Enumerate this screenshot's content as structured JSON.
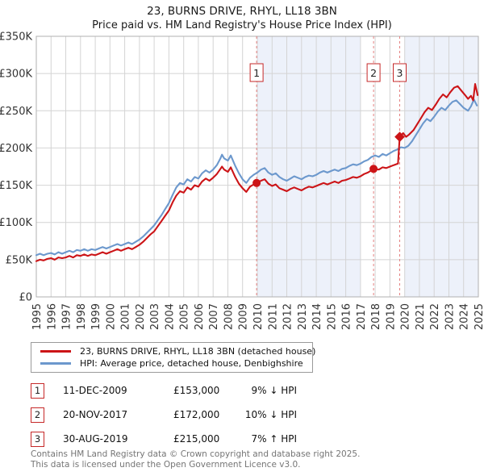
{
  "title": "23, BURNS DRIVE, RHYL, LL18 3BN",
  "subtitle": "Price paid vs. HM Land Registry's House Price Index (HPI)",
  "legend": {
    "items": [
      {
        "label": "23, BURNS DRIVE, RHYL, LL18 3BN (detached house)",
        "color": "#cc1417"
      },
      {
        "label": "HPI: Average price, detached house, Denbighshire",
        "color": "#6c98cd"
      }
    ]
  },
  "transactions": [
    {
      "num": "1",
      "date": "11-DEC-2009",
      "price": "£153,000",
      "hpi_diff": "9% ↓ HPI"
    },
    {
      "num": "2",
      "date": "20-NOV-2017",
      "price": "£172,000",
      "hpi_diff": "10% ↓ HPI"
    },
    {
      "num": "3",
      "date": "30-AUG-2019",
      "price": "£215,000",
      "hpi_diff": "7% ↑ HPI"
    }
  ],
  "footer": {
    "line1": "Contains HM Land Registry data © Crown copyright and database right 2025.",
    "line2": "This data is licensed under the Open Government Licence v3.0."
  },
  "chart_data": {
    "type": "line",
    "title": "23, BURNS DRIVE, RHYL, LL18 3BN",
    "subtitle": "Price paid vs. HM Land Registry's House Price Index (HPI)",
    "x_label": "year",
    "y_unit": "GBP thousands",
    "x_range": [
      1995,
      2025
    ],
    "y_range": [
      0,
      350
    ],
    "grid": true,
    "y_tick_values": [
      0,
      50,
      100,
      150,
      200,
      250,
      300,
      350
    ],
    "y_tick_labels": [
      "£0",
      "£50K",
      "£100K",
      "£150K",
      "£200K",
      "£250K",
      "£300K",
      "£350K"
    ],
    "x_tick_years": [
      1995,
      1996,
      1997,
      1998,
      1999,
      2000,
      2001,
      2002,
      2003,
      2004,
      2005,
      2006,
      2007,
      2008,
      2009,
      2010,
      2011,
      2012,
      2013,
      2014,
      2015,
      2016,
      2017,
      2018,
      2019,
      2020,
      2021,
      2022,
      2023,
      2024,
      2025
    ],
    "shade_color": "#edf1fa",
    "grid_color": "#d4d4d4",
    "border_color": "#b0b0b0",
    "tick_text_color": "#333333",
    "event_line_color": "#e58080",
    "shaded_regions": [
      {
        "from": 2010,
        "to": 2017
      },
      {
        "from": 2020,
        "to": 2025
      }
    ],
    "sale_markers": [
      {
        "n": "1",
        "x": 2009.95,
        "value": 153,
        "shape": "circle"
      },
      {
        "n": "2",
        "x": 2017.89,
        "value": 172,
        "shape": "circle"
      },
      {
        "n": "3",
        "x": 2019.66,
        "value": 215,
        "shape": "diamond"
      }
    ],
    "series": [
      {
        "name": "HPI: Average price, detached house, Denbighshire",
        "color": "#6c98cd",
        "points": [
          [
            1995.0,
            56
          ],
          [
            1995.25,
            58
          ],
          [
            1995.5,
            56
          ],
          [
            1995.75,
            58
          ],
          [
            1996.0,
            59
          ],
          [
            1996.25,
            57
          ],
          [
            1996.5,
            60
          ],
          [
            1996.75,
            58
          ],
          [
            1997.0,
            60
          ],
          [
            1997.25,
            62
          ],
          [
            1997.5,
            60
          ],
          [
            1997.75,
            63
          ],
          [
            1998.0,
            62
          ],
          [
            1998.25,
            64
          ],
          [
            1998.5,
            62
          ],
          [
            1998.75,
            64
          ],
          [
            1999.0,
            63
          ],
          [
            1999.25,
            65
          ],
          [
            1999.5,
            67
          ],
          [
            1999.75,
            65
          ],
          [
            2000.0,
            67
          ],
          [
            2000.25,
            69
          ],
          [
            2000.5,
            71
          ],
          [
            2000.75,
            69
          ],
          [
            2001.0,
            71
          ],
          [
            2001.25,
            73
          ],
          [
            2001.5,
            71
          ],
          [
            2001.75,
            74
          ],
          [
            2002.0,
            77
          ],
          [
            2002.25,
            81
          ],
          [
            2002.5,
            86
          ],
          [
            2002.75,
            91
          ],
          [
            2003.0,
            96
          ],
          [
            2003.25,
            103
          ],
          [
            2003.5,
            110
          ],
          [
            2003.75,
            118
          ],
          [
            2004.0,
            126
          ],
          [
            2004.25,
            137
          ],
          [
            2004.5,
            147
          ],
          [
            2004.75,
            153
          ],
          [
            2005.0,
            151
          ],
          [
            2005.25,
            158
          ],
          [
            2005.5,
            155
          ],
          [
            2005.75,
            161
          ],
          [
            2006.0,
            159
          ],
          [
            2006.25,
            166
          ],
          [
            2006.5,
            170
          ],
          [
            2006.75,
            167
          ],
          [
            2007.0,
            171
          ],
          [
            2007.25,
            177
          ],
          [
            2007.5,
            186
          ],
          [
            2007.6,
            191
          ],
          [
            2007.75,
            186
          ],
          [
            2008.0,
            183
          ],
          [
            2008.2,
            190
          ],
          [
            2008.5,
            176
          ],
          [
            2008.75,
            166
          ],
          [
            2009.0,
            158
          ],
          [
            2009.25,
            153
          ],
          [
            2009.5,
            160
          ],
          [
            2009.75,
            164
          ],
          [
            2010.0,
            167
          ],
          [
            2010.25,
            171
          ],
          [
            2010.5,
            173
          ],
          [
            2010.75,
            167
          ],
          [
            2011.0,
            164
          ],
          [
            2011.25,
            166
          ],
          [
            2011.5,
            161
          ],
          [
            2011.75,
            158
          ],
          [
            2012.0,
            156
          ],
          [
            2012.25,
            159
          ],
          [
            2012.5,
            162
          ],
          [
            2012.75,
            160
          ],
          [
            2013.0,
            158
          ],
          [
            2013.25,
            161
          ],
          [
            2013.5,
            163
          ],
          [
            2013.75,
            162
          ],
          [
            2014.0,
            164
          ],
          [
            2014.25,
            167
          ],
          [
            2014.5,
            169
          ],
          [
            2014.75,
            167
          ],
          [
            2015.0,
            169
          ],
          [
            2015.25,
            171
          ],
          [
            2015.5,
            169
          ],
          [
            2015.75,
            172
          ],
          [
            2016.0,
            173
          ],
          [
            2016.25,
            176
          ],
          [
            2016.5,
            178
          ],
          [
            2016.75,
            177
          ],
          [
            2017.0,
            179
          ],
          [
            2017.25,
            182
          ],
          [
            2017.5,
            184
          ],
          [
            2017.75,
            188
          ],
          [
            2018.0,
            190
          ],
          [
            2018.25,
            188
          ],
          [
            2018.5,
            192
          ],
          [
            2018.75,
            190
          ],
          [
            2019.0,
            193
          ],
          [
            2019.25,
            196
          ],
          [
            2019.5,
            198
          ],
          [
            2019.75,
            201
          ],
          [
            2020.0,
            200
          ],
          [
            2020.25,
            203
          ],
          [
            2020.5,
            209
          ],
          [
            2020.75,
            217
          ],
          [
            2021.0,
            225
          ],
          [
            2021.25,
            233
          ],
          [
            2021.5,
            239
          ],
          [
            2021.75,
            236
          ],
          [
            2022.0,
            242
          ],
          [
            2022.25,
            249
          ],
          [
            2022.5,
            254
          ],
          [
            2022.75,
            251
          ],
          [
            2023.0,
            257
          ],
          [
            2023.25,
            262
          ],
          [
            2023.5,
            264
          ],
          [
            2023.75,
            259
          ],
          [
            2024.0,
            254
          ],
          [
            2024.3,
            250
          ],
          [
            2024.5,
            256
          ],
          [
            2024.7,
            265
          ],
          [
            2024.9,
            257
          ]
        ]
      },
      {
        "name": "23, BURNS DRIVE, RHYL, LL18 3BN (detached house)",
        "color": "#cc1417",
        "points": [
          [
            1995.0,
            48
          ],
          [
            1995.25,
            50
          ],
          [
            1995.5,
            49
          ],
          [
            1995.75,
            51
          ],
          [
            1996.0,
            52
          ],
          [
            1996.25,
            50
          ],
          [
            1996.5,
            53
          ],
          [
            1996.75,
            52
          ],
          [
            1997.0,
            53
          ],
          [
            1997.25,
            55
          ],
          [
            1997.5,
            53
          ],
          [
            1997.75,
            56
          ],
          [
            1998.0,
            55
          ],
          [
            1998.25,
            57
          ],
          [
            1998.5,
            55
          ],
          [
            1998.75,
            57
          ],
          [
            1999.0,
            56
          ],
          [
            1999.25,
            58
          ],
          [
            1999.5,
            60
          ],
          [
            1999.75,
            58
          ],
          [
            2000.0,
            60
          ],
          [
            2000.25,
            62
          ],
          [
            2000.5,
            64
          ],
          [
            2000.75,
            62
          ],
          [
            2001.0,
            64
          ],
          [
            2001.25,
            66
          ],
          [
            2001.5,
            64
          ],
          [
            2001.75,
            67
          ],
          [
            2002.0,
            70
          ],
          [
            2002.25,
            74
          ],
          [
            2002.5,
            79
          ],
          [
            2002.75,
            84
          ],
          [
            2003.0,
            88
          ],
          [
            2003.25,
            95
          ],
          [
            2003.5,
            102
          ],
          [
            2003.75,
            109
          ],
          [
            2004.0,
            116
          ],
          [
            2004.25,
            127
          ],
          [
            2004.5,
            136
          ],
          [
            2004.75,
            142
          ],
          [
            2005.0,
            140
          ],
          [
            2005.25,
            147
          ],
          [
            2005.5,
            144
          ],
          [
            2005.75,
            150
          ],
          [
            2006.0,
            148
          ],
          [
            2006.25,
            155
          ],
          [
            2006.5,
            159
          ],
          [
            2006.75,
            156
          ],
          [
            2007.0,
            160
          ],
          [
            2007.25,
            165
          ],
          [
            2007.5,
            172
          ],
          [
            2007.6,
            175
          ],
          [
            2007.75,
            171
          ],
          [
            2008.0,
            168
          ],
          [
            2008.2,
            174
          ],
          [
            2008.5,
            161
          ],
          [
            2008.75,
            152
          ],
          [
            2009.0,
            146
          ],
          [
            2009.25,
            141
          ],
          [
            2009.5,
            148
          ],
          [
            2009.75,
            151
          ],
          [
            2009.95,
            153
          ],
          [
            2010.25,
            156
          ],
          [
            2010.5,
            158
          ],
          [
            2010.75,
            152
          ],
          [
            2011.0,
            149
          ],
          [
            2011.25,
            151
          ],
          [
            2011.5,
            146
          ],
          [
            2011.75,
            144
          ],
          [
            2012.0,
            142
          ],
          [
            2012.25,
            145
          ],
          [
            2012.5,
            147
          ],
          [
            2012.75,
            145
          ],
          [
            2013.0,
            143
          ],
          [
            2013.25,
            146
          ],
          [
            2013.5,
            148
          ],
          [
            2013.75,
            147
          ],
          [
            2014.0,
            149
          ],
          [
            2014.25,
            151
          ],
          [
            2014.5,
            153
          ],
          [
            2014.75,
            151
          ],
          [
            2015.0,
            153
          ],
          [
            2015.25,
            155
          ],
          [
            2015.5,
            153
          ],
          [
            2015.75,
            156
          ],
          [
            2016.0,
            157
          ],
          [
            2016.25,
            159
          ],
          [
            2016.5,
            161
          ],
          [
            2016.75,
            160
          ],
          [
            2017.0,
            162
          ],
          [
            2017.25,
            165
          ],
          [
            2017.5,
            167
          ],
          [
            2017.75,
            170
          ],
          [
            2017.89,
            172
          ],
          [
            2018.25,
            171
          ],
          [
            2018.5,
            174
          ],
          [
            2018.75,
            173
          ],
          [
            2019.0,
            175
          ],
          [
            2019.25,
            177
          ],
          [
            2019.55,
            179
          ],
          [
            2019.66,
            215
          ],
          [
            2019.9,
            220
          ],
          [
            2020.1,
            215
          ],
          [
            2020.3,
            218
          ],
          [
            2020.6,
            224
          ],
          [
            2020.85,
            232
          ],
          [
            2021.1,
            240
          ],
          [
            2021.35,
            248
          ],
          [
            2021.6,
            254
          ],
          [
            2021.85,
            251
          ],
          [
            2022.1,
            258
          ],
          [
            2022.35,
            266
          ],
          [
            2022.6,
            272
          ],
          [
            2022.85,
            268
          ],
          [
            2023.1,
            275
          ],
          [
            2023.35,
            281
          ],
          [
            2023.6,
            283
          ],
          [
            2023.85,
            277
          ],
          [
            2024.1,
            271
          ],
          [
            2024.3,
            266
          ],
          [
            2024.5,
            270
          ],
          [
            2024.65,
            264
          ],
          [
            2024.78,
            286
          ],
          [
            2024.95,
            271
          ]
        ]
      }
    ]
  }
}
